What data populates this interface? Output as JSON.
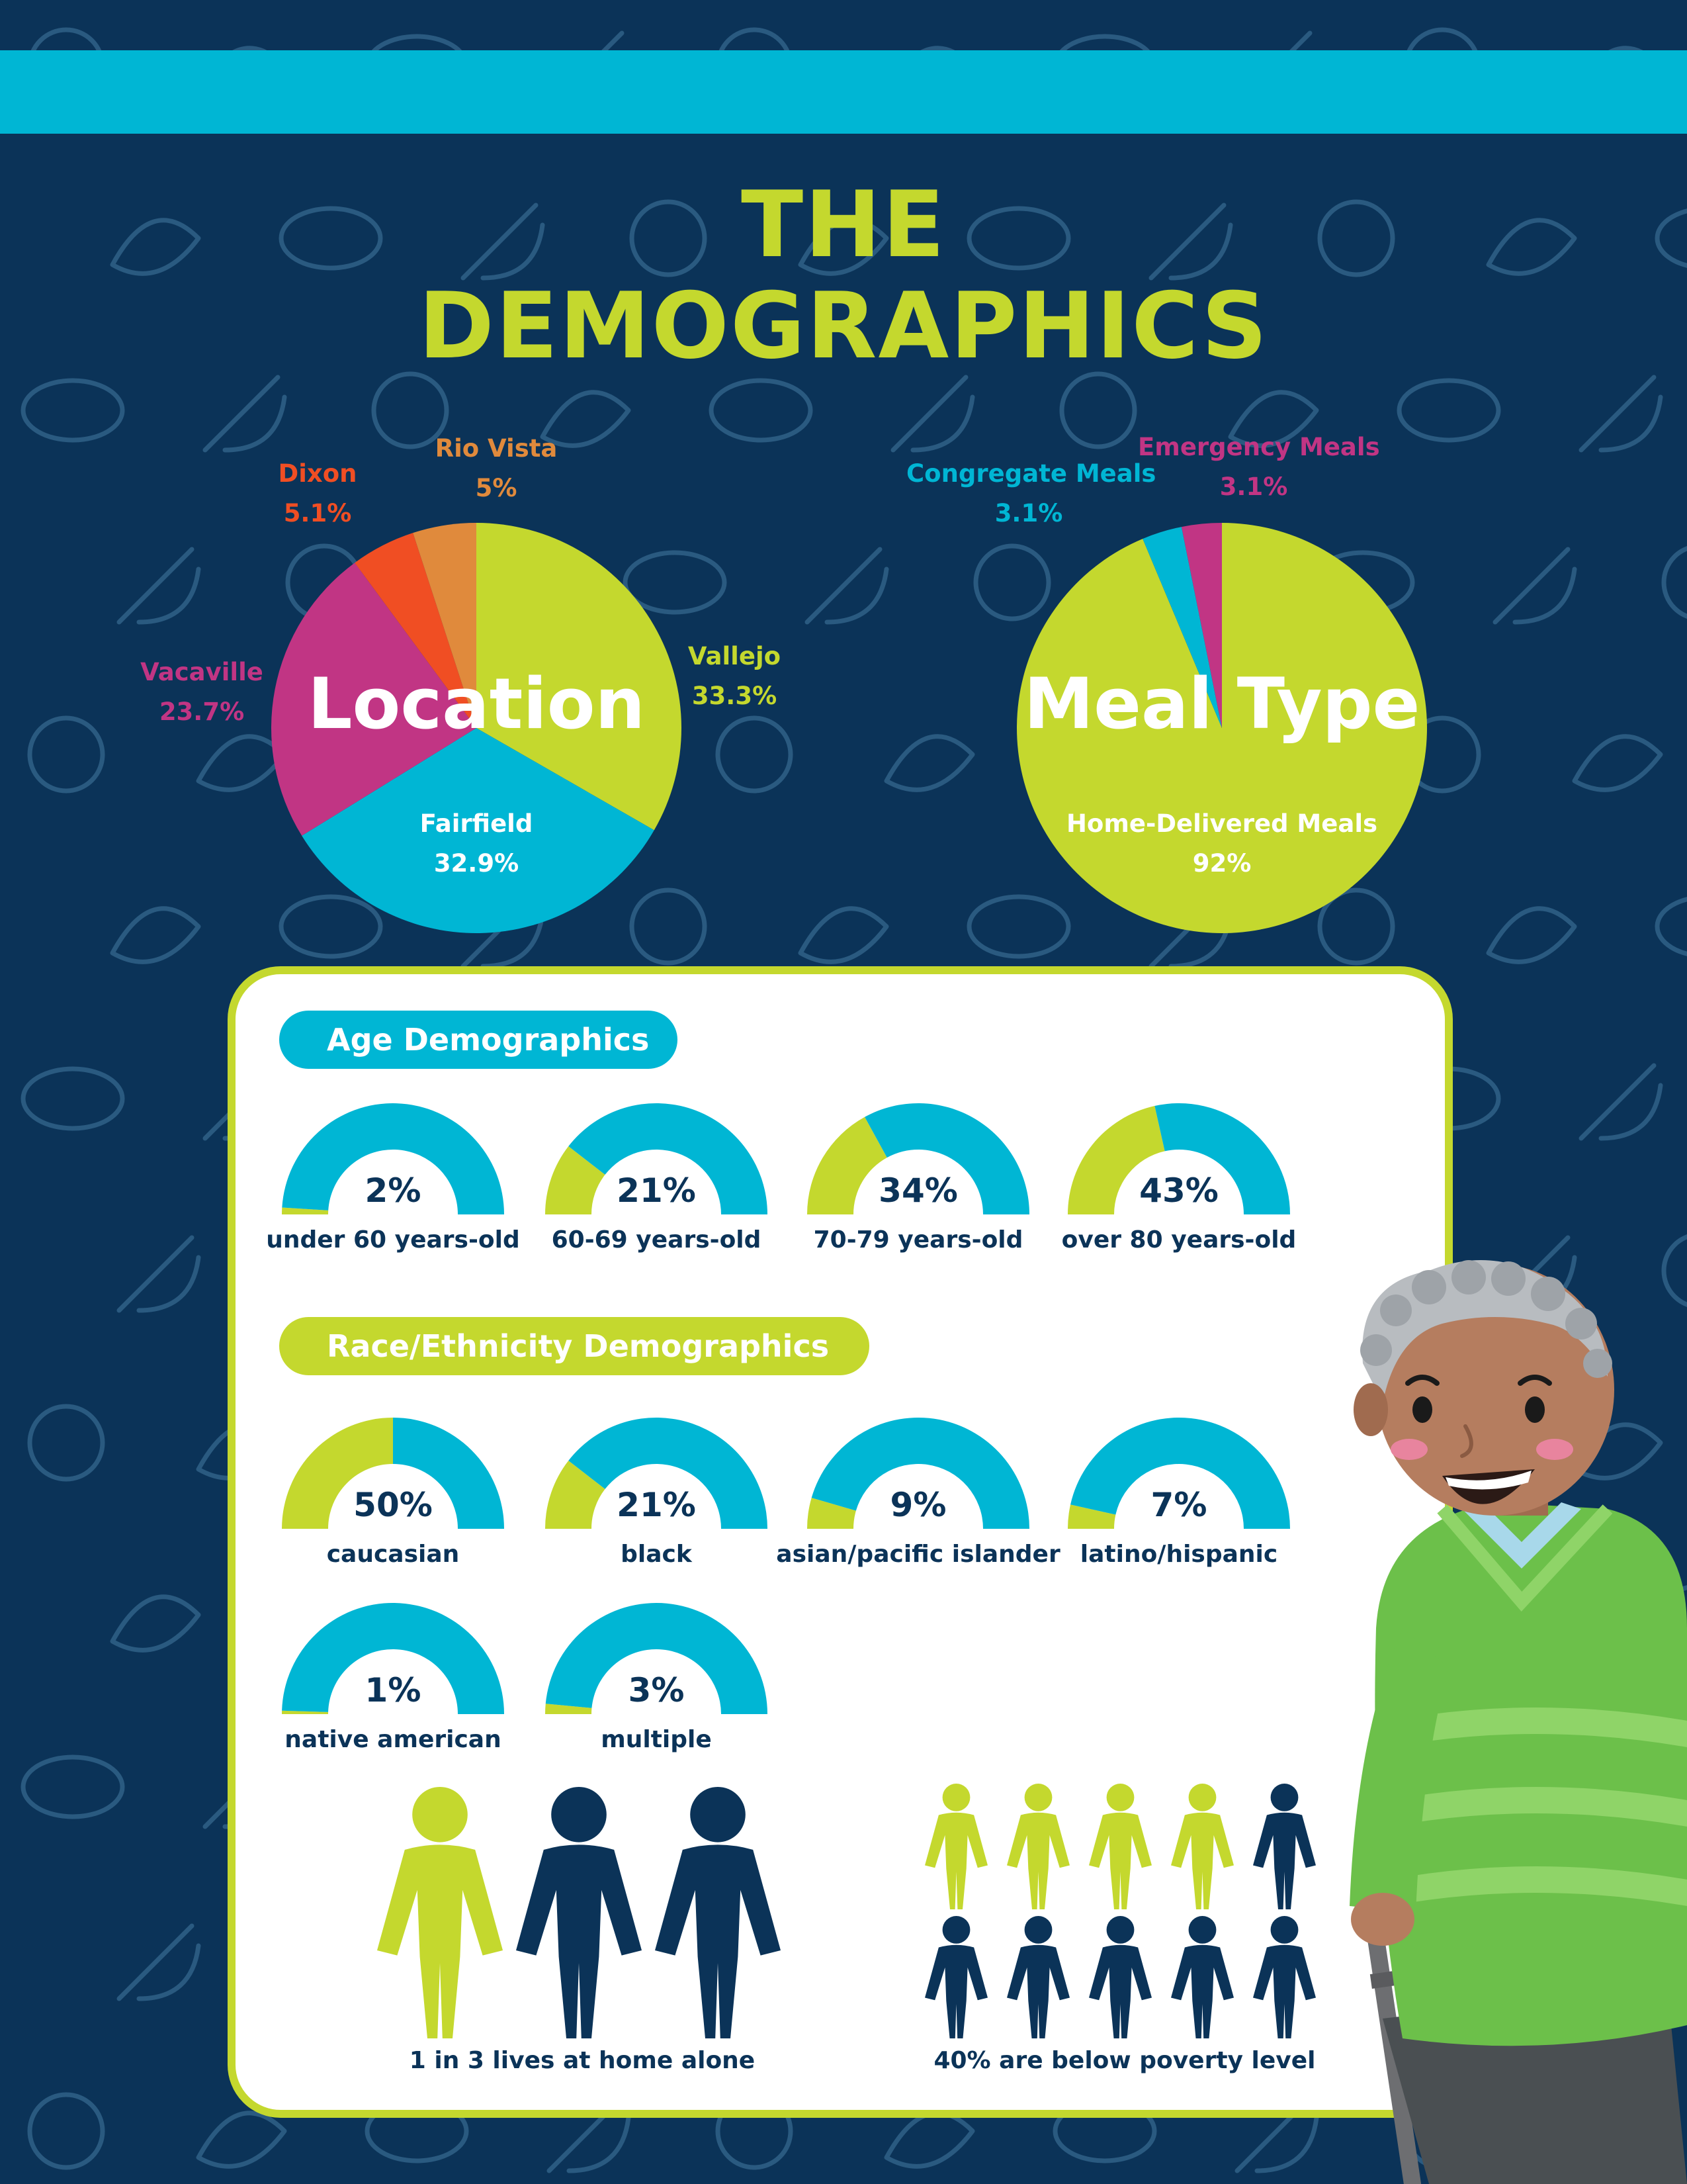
{
  "title": {
    "line1": "THE",
    "line2": "DEMOGRAPHICS"
  },
  "colors": {
    "background": "#0b3358",
    "cyan": "#00b6d4",
    "lime": "#c4d82e",
    "magenta": "#c13584",
    "red_orange": "#f04e23",
    "orange": "#e08a3c",
    "navy": "#0b3358"
  },
  "chart_data": [
    {
      "type": "pie",
      "title": "Location",
      "slices": [
        {
          "label": "Vallejo",
          "value": 33.3,
          "display": "33.3%",
          "color": "#c4d82e"
        },
        {
          "label": "Fairfield",
          "value": 32.9,
          "display": "32.9%",
          "color": "#00b6d4"
        },
        {
          "label": "Vacaville",
          "value": 23.7,
          "display": "23.7%",
          "color": "#c13584"
        },
        {
          "label": "Dixon",
          "value": 5.1,
          "display": "5.1%",
          "color": "#f04e23"
        },
        {
          "label": "Rio Vista",
          "value": 5,
          "display": "5%",
          "color": "#e08a3c"
        }
      ]
    },
    {
      "type": "pie",
      "title": "Meal Type",
      "slices": [
        {
          "label": "Home-Delivered Meals",
          "value": 92,
          "display": "92%",
          "color": "#c4d82e"
        },
        {
          "label": "Congregate Meals",
          "value": 3.1,
          "display": "3.1%",
          "color": "#00b6d4"
        },
        {
          "label": "Emergency Meals",
          "value": 3.1,
          "display": "3.1%",
          "color": "#c13584"
        }
      ]
    },
    {
      "type": "gauge",
      "title": "Age Demographics",
      "items": [
        {
          "label": "under 60 years-old",
          "value": 2,
          "display": "2%"
        },
        {
          "label": "60-69 years-old",
          "value": 21,
          "display": "21%"
        },
        {
          "label": "70-79 years-old",
          "value": 34,
          "display": "34%"
        },
        {
          "label": "over 80 years-old",
          "value": 43,
          "display": "43%"
        }
      ]
    },
    {
      "type": "gauge",
      "title": "Race/Ethnicity Demographics",
      "items": [
        {
          "label": "caucasian",
          "value": 50,
          "display": "50%"
        },
        {
          "label": "black",
          "value": 21,
          "display": "21%"
        },
        {
          "label": "asian/pacific islander",
          "value": 9,
          "display": "9%"
        },
        {
          "label": "latino/hispanic",
          "value": 7,
          "display": "7%"
        },
        {
          "label": "native american",
          "value": 1,
          "display": "1%"
        },
        {
          "label": "multiple",
          "value": 3,
          "display": "3%"
        }
      ]
    }
  ],
  "stats": {
    "alone": {
      "label": "1 in 3 lives at home alone",
      "highlighted": 1,
      "total": 3
    },
    "poverty": {
      "label": "40% are below poverty level",
      "highlighted": 4,
      "total": 10
    }
  },
  "illustration": {
    "name": "smiling-senior-man-with-cane"
  }
}
